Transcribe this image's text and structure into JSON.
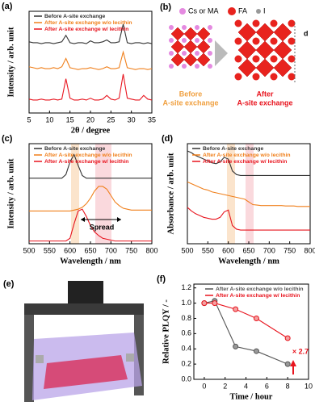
{
  "chart_data": [
    {
      "type": "line",
      "panel": "(a)",
      "xlabel": "2θ / degree",
      "ylabel": "Intensity / arb. unit",
      "xlim": [
        5,
        35
      ],
      "xticks": [
        5,
        10,
        15,
        20,
        25,
        30,
        35
      ],
      "ylim": [
        0,
        11
      ],
      "legend": "upper left",
      "x": [
        5,
        6,
        7,
        8,
        9,
        10,
        11,
        12,
        13,
        14,
        15,
        16,
        17,
        18,
        19,
        20,
        21,
        22,
        23,
        24,
        25,
        26,
        27,
        28,
        29,
        30,
        31,
        32,
        33,
        34,
        35
      ],
      "series": [
        {
          "name": "Before A-site exchange",
          "color": "#333333",
          "values": [
            7.7,
            7.6,
            7.6,
            7.5,
            7.6,
            7.6,
            7.5,
            7.6,
            7.7,
            8.4,
            7.6,
            7.5,
            7.6,
            7.6,
            7.5,
            7.8,
            7.6,
            7.6,
            7.7,
            7.9,
            7.6,
            7.6,
            7.7,
            9.6,
            7.6,
            7.5,
            7.6,
            7.6,
            7.5,
            7.6,
            7.5
          ]
        },
        {
          "name": "After A-site exchange w/o lecithin",
          "color": "#f07f1a",
          "values": [
            5.0,
            4.9,
            4.8,
            4.9,
            4.8,
            4.8,
            4.9,
            4.8,
            5.0,
            5.9,
            4.9,
            4.8,
            4.7,
            4.8,
            4.8,
            4.9,
            4.8,
            4.7,
            4.8,
            5.0,
            4.8,
            4.8,
            4.9,
            6.6,
            4.9,
            4.8,
            4.7,
            4.8,
            4.8,
            4.7,
            4.8
          ]
        },
        {
          "name": "After A-site exchange w/ lecithin",
          "color": "#e8141e",
          "values": [
            1.5,
            1.4,
            1.4,
            1.5,
            1.4,
            1.4,
            1.5,
            1.4,
            1.5,
            3.7,
            1.6,
            1.4,
            1.4,
            1.5,
            1.4,
            1.6,
            1.4,
            1.4,
            1.5,
            1.9,
            1.5,
            1.4,
            1.6,
            4.2,
            1.6,
            1.5,
            1.4,
            1.4,
            1.9,
            1.5,
            1.4
          ]
        }
      ]
    },
    {
      "type": "line",
      "panel": "(c)",
      "xlabel": "Wavelength / nm",
      "ylabel": "Intensity / arb. unit",
      "xlim": [
        500,
        800
      ],
      "xticks": [
        500,
        550,
        600,
        650,
        700,
        750,
        800
      ],
      "ylim": [
        0,
        11
      ],
      "legend": "upper left",
      "annotations": [
        "Spread"
      ],
      "x": [
        500,
        510,
        520,
        530,
        540,
        550,
        560,
        570,
        580,
        590,
        600,
        610,
        620,
        630,
        640,
        650,
        660,
        670,
        680,
        690,
        700,
        710,
        720,
        730,
        740,
        750,
        760,
        770,
        780,
        790,
        800
      ],
      "series": [
        {
          "name": "Before A-site exchange",
          "color": "#333333",
          "values": [
            7.2,
            7.2,
            7.2,
            7.2,
            7.2,
            7.2,
            7.2,
            7.2,
            7.2,
            7.6,
            9.0,
            9.8,
            8.6,
            7.5,
            7.2,
            7.2,
            7.2,
            7.2,
            7.2,
            7.2,
            7.2,
            7.2,
            7.2,
            7.2,
            7.2,
            7.2,
            7.2,
            7.2,
            7.2,
            7.2,
            7.2
          ]
        },
        {
          "name": "After A-site exchange w/o lecithin",
          "color": "#f07f1a",
          "values": [
            3.6,
            3.6,
            3.6,
            3.6,
            3.6,
            3.6,
            3.6,
            3.6,
            3.6,
            3.6,
            3.6,
            3.7,
            3.8,
            4.0,
            4.4,
            5.0,
            5.8,
            6.3,
            6.3,
            6.0,
            5.3,
            4.6,
            4.2,
            3.9,
            3.8,
            3.7,
            3.7,
            3.7,
            3.7,
            3.7,
            3.7
          ]
        },
        {
          "name": "After A-site exchange w/ lecithin",
          "color": "#e8141e",
          "values": [
            0.3,
            0.3,
            0.3,
            0.3,
            0.3,
            0.3,
            0.3,
            0.3,
            0.3,
            0.3,
            0.6,
            2.2,
            3.6,
            3.8,
            3.0,
            2.0,
            1.3,
            0.9,
            0.6,
            0.5,
            0.4,
            0.3,
            0.3,
            0.3,
            0.3,
            0.3,
            0.3,
            0.3,
            0.3,
            0.3,
            0.3
          ]
        }
      ]
    },
    {
      "type": "line",
      "panel": "(d)",
      "xlabel": "Wavelength / nm",
      "ylabel": "Absorbance / arb. unit",
      "xlim": [
        500,
        800
      ],
      "xticks": [
        500,
        550,
        600,
        650,
        700,
        750,
        800
      ],
      "ylim": [
        0,
        11
      ],
      "legend": "upper left",
      "x": [
        500,
        510,
        520,
        530,
        540,
        550,
        560,
        570,
        580,
        590,
        600,
        610,
        620,
        630,
        640,
        650,
        660,
        670,
        680,
        690,
        700,
        710,
        720,
        730,
        740,
        750,
        760,
        770,
        780,
        790,
        800
      ],
      "series": [
        {
          "name": "Before A-site exchange",
          "color": "#333333",
          "values": [
            10.2,
            10.0,
            9.7,
            9.5,
            9.3,
            9.1,
            8.9,
            8.8,
            9.0,
            9.5,
            9.3,
            8.0,
            7.6,
            7.5,
            7.5,
            7.5,
            7.5,
            7.5,
            7.5,
            7.5,
            7.5,
            7.5,
            7.5,
            7.5,
            7.5,
            7.5,
            7.5,
            7.5,
            7.5,
            7.5,
            7.5
          ]
        },
        {
          "name": "After A-site exchange w/o lecithin",
          "color": "#f07f1a",
          "values": [
            6.8,
            6.6,
            6.4,
            6.2,
            6.0,
            5.9,
            5.7,
            5.6,
            5.5,
            5.4,
            5.3,
            5.2,
            5.1,
            5.0,
            4.9,
            4.6,
            4.3,
            4.25,
            4.2,
            4.2,
            4.2,
            4.2,
            4.2,
            4.2,
            4.15,
            4.15,
            4.15,
            4.1,
            4.1,
            4.1,
            4.1
          ]
        },
        {
          "name": "After A-site exchange w/ lecithin",
          "color": "#e8141e",
          "values": [
            4.0,
            3.6,
            3.3,
            3.1,
            2.9,
            2.8,
            2.7,
            2.7,
            2.9,
            3.5,
            3.7,
            2.0,
            1.6,
            1.5,
            1.5,
            1.5,
            1.5,
            1.5,
            1.5,
            1.5,
            1.5,
            1.5,
            1.5,
            1.5,
            1.5,
            1.5,
            1.5,
            1.5,
            1.5,
            1.5,
            1.5
          ]
        }
      ]
    },
    {
      "type": "line",
      "panel": "(f)",
      "xlabel": "Time / hour",
      "ylabel": "Relative PLQY / -",
      "xlim": [
        -1,
        10
      ],
      "xticks": [
        0,
        2,
        4,
        6,
        8,
        10
      ],
      "ylim": [
        0,
        1.25
      ],
      "yticks": [
        {
          "value": 0,
          "label": "0.0"
        },
        0.2,
        0.4,
        0.6,
        0.8,
        {
          "value": 1,
          "label": "1.0"
        },
        1.2
      ],
      "legend": "upper right",
      "markers": true,
      "annotations": [
        "× 2.7"
      ],
      "x": [
        0,
        1,
        3,
        5,
        8
      ],
      "series": [
        {
          "name": "After A-site exchange w/o lecithin",
          "color": "#555555",
          "values": [
            1.0,
            1.03,
            0.43,
            0.37,
            0.2
          ]
        },
        {
          "name": "After A-site exchange w/ lecithin",
          "color": "#e8141e",
          "values": [
            1.0,
            1.0,
            0.92,
            0.8,
            0.54
          ]
        }
      ]
    }
  ],
  "diagram": {
    "panel": "(b)",
    "legend": [
      "Cs or MA",
      "FA",
      "I"
    ],
    "before": [
      "Before",
      "A-site exchange"
    ],
    "after": [
      "After",
      "A-site exchange"
    ],
    "dimension": "d"
  },
  "photo": {
    "panel": "(e)"
  }
}
